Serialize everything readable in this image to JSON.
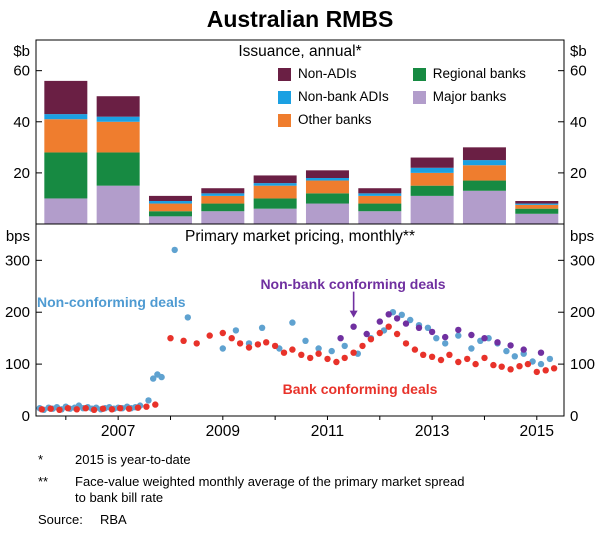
{
  "title": "Australian RMBS",
  "panels": {
    "top": {
      "title": "Issuance, annual*",
      "unit": "$b"
    },
    "bottom": {
      "title": "Primary market pricing, monthly**",
      "unit": "bps"
    }
  },
  "legend": {
    "items": [
      {
        "label": "Non-ADIs",
        "color": "#6a1f44"
      },
      {
        "label": "Non-bank ADIs",
        "color": "#1ba0e2"
      },
      {
        "label": "Other banks",
        "color": "#ef7d2e"
      },
      {
        "label": "Regional banks",
        "color": "#178a42"
      },
      {
        "label": "Major banks",
        "color": "#b29dcb"
      }
    ]
  },
  "annotations": {
    "non_conforming": {
      "text": "Non-conforming deals",
      "color": "#4f9bd2"
    },
    "non_bank_conforming": {
      "text": "Non-bank conforming deals",
      "color": "#7030a0",
      "arrow_to": [
        2011.5,
        178
      ]
    },
    "bank_conforming": {
      "text": "Bank conforming deals",
      "color": "#e8322a"
    }
  },
  "footnotes": [
    {
      "marker": "*",
      "lines": [
        "2015 is year-to-date"
      ]
    },
    {
      "marker": "**",
      "lines": [
        "Face-value weighted monthly average of the primary market spread",
        "to bank bill rate"
      ]
    }
  ],
  "source": {
    "label": "Source:",
    "value": "RBA"
  },
  "chart_data": [
    {
      "type": "bar",
      "stacked": true,
      "title": "Issuance, annual*",
      "ylabel": "$b",
      "ylim": [
        0,
        72
      ],
      "yticks": [
        20,
        40,
        60
      ],
      "categories": [
        2006,
        2007,
        2008,
        2009,
        2010,
        2011,
        2012,
        2013,
        2014,
        2015
      ],
      "series": [
        {
          "name": "Major banks",
          "color": "#b29dcb",
          "values": [
            10,
            15,
            3,
            5,
            6,
            8,
            5,
            11,
            13,
            4
          ]
        },
        {
          "name": "Regional banks",
          "color": "#178a42",
          "values": [
            18,
            13,
            2,
            3,
            4,
            4,
            3,
            4,
            4,
            2
          ]
        },
        {
          "name": "Other banks",
          "color": "#ef7d2e",
          "values": [
            13,
            12,
            3,
            3,
            5,
            5,
            3,
            5,
            6,
            1.5
          ]
        },
        {
          "name": "Non-bank ADIs",
          "color": "#1ba0e2",
          "values": [
            2,
            2,
            1,
            1,
            1,
            1,
            1,
            2,
            2,
            0.5
          ]
        },
        {
          "name": "Non-ADIs",
          "color": "#6a1f44",
          "values": [
            13,
            8,
            2,
            2,
            3,
            3,
            2,
            4,
            5,
            1
          ]
        }
      ]
    },
    {
      "type": "scatter",
      "title": "Primary market pricing, monthly**",
      "ylabel": "bps",
      "ylim": [
        0,
        370
      ],
      "yticks": [
        0,
        100,
        200,
        300
      ],
      "xlim": [
        2005.43,
        2015.52
      ],
      "xticks": [
        2007,
        2009,
        2011,
        2013,
        2015
      ],
      "series": [
        {
          "name": "Non-conforming deals",
          "color": "#5fa2d0",
          "points": [
            [
              2005.5,
              15
            ],
            [
              2005.58,
              12
            ],
            [
              2005.67,
              16
            ],
            [
              2005.75,
              14
            ],
            [
              2005.83,
              17
            ],
            [
              2005.92,
              13
            ],
            [
              2006.0,
              18
            ],
            [
              2006.08,
              14
            ],
            [
              2006.17,
              16
            ],
            [
              2006.25,
              20
            ],
            [
              2006.33,
              15
            ],
            [
              2006.42,
              17
            ],
            [
              2006.5,
              14
            ],
            [
              2006.58,
              16
            ],
            [
              2006.67,
              13
            ],
            [
              2006.75,
              15
            ],
            [
              2006.83,
              17
            ],
            [
              2006.92,
              14
            ],
            [
              2007.0,
              16
            ],
            [
              2007.08,
              15
            ],
            [
              2007.17,
              18
            ],
            [
              2007.25,
              15
            ],
            [
              2007.33,
              17
            ],
            [
              2007.42,
              20
            ],
            [
              2007.58,
              30
            ],
            [
              2007.67,
              72
            ],
            [
              2007.75,
              80
            ],
            [
              2007.83,
              75
            ],
            [
              2008.08,
              320
            ],
            [
              2008.33,
              190
            ],
            [
              2009.0,
              130
            ],
            [
              2009.25,
              165
            ],
            [
              2009.5,
              140
            ],
            [
              2009.75,
              170
            ],
            [
              2010.08,
              130
            ],
            [
              2010.33,
              180
            ],
            [
              2010.58,
              145
            ],
            [
              2010.83,
              130
            ],
            [
              2011.08,
              125
            ],
            [
              2011.33,
              135
            ],
            [
              2011.58,
              120
            ],
            [
              2011.83,
              150
            ],
            [
              2012.08,
              165
            ],
            [
              2012.25,
              200
            ],
            [
              2012.42,
              195
            ],
            [
              2012.58,
              185
            ],
            [
              2012.75,
              175
            ],
            [
              2012.92,
              170
            ],
            [
              2013.08,
              150
            ],
            [
              2013.25,
              140
            ],
            [
              2013.5,
              155
            ],
            [
              2013.75,
              130
            ],
            [
              2013.92,
              145
            ],
            [
              2014.08,
              150
            ],
            [
              2014.25,
              140
            ],
            [
              2014.42,
              125
            ],
            [
              2014.58,
              115
            ],
            [
              2014.75,
              120
            ],
            [
              2014.92,
              105
            ],
            [
              2015.08,
              100
            ],
            [
              2015.25,
              110
            ]
          ]
        },
        {
          "name": "Bank conforming deals",
          "color": "#e8322a",
          "points": [
            [
              2005.54,
              13
            ],
            [
              2005.71,
              14
            ],
            [
              2005.88,
              12
            ],
            [
              2006.04,
              15
            ],
            [
              2006.21,
              13
            ],
            [
              2006.38,
              15
            ],
            [
              2006.54,
              12
            ],
            [
              2006.71,
              14
            ],
            [
              2006.88,
              13
            ],
            [
              2007.04,
              15
            ],
            [
              2007.21,
              14
            ],
            [
              2007.38,
              16
            ],
            [
              2007.54,
              18
            ],
            [
              2007.71,
              22
            ],
            [
              2008.0,
              150
            ],
            [
              2008.25,
              145
            ],
            [
              2008.5,
              140
            ],
            [
              2008.75,
              155
            ],
            [
              2009.0,
              160
            ],
            [
              2009.17,
              150
            ],
            [
              2009.33,
              140
            ],
            [
              2009.5,
              132
            ],
            [
              2009.67,
              138
            ],
            [
              2009.83,
              142
            ],
            [
              2010.0,
              135
            ],
            [
              2010.17,
              122
            ],
            [
              2010.33,
              128
            ],
            [
              2010.5,
              118
            ],
            [
              2010.67,
              112
            ],
            [
              2010.83,
              120
            ],
            [
              2011.0,
              110
            ],
            [
              2011.17,
              104
            ],
            [
              2011.33,
              112
            ],
            [
              2011.5,
              122
            ],
            [
              2011.67,
              135
            ],
            [
              2011.83,
              148
            ],
            [
              2012.0,
              160
            ],
            [
              2012.17,
              172
            ],
            [
              2012.33,
              158
            ],
            [
              2012.5,
              140
            ],
            [
              2012.67,
              128
            ],
            [
              2012.83,
              118
            ],
            [
              2013.0,
              114
            ],
            [
              2013.17,
              108
            ],
            [
              2013.33,
              118
            ],
            [
              2013.5,
              104
            ],
            [
              2013.67,
              110
            ],
            [
              2013.83,
              100
            ],
            [
              2014.0,
              112
            ],
            [
              2014.17,
              98
            ],
            [
              2014.33,
              95
            ],
            [
              2014.5,
              90
            ],
            [
              2014.67,
              96
            ],
            [
              2014.83,
              100
            ],
            [
              2015.0,
              85
            ],
            [
              2015.17,
              88
            ],
            [
              2015.33,
              92
            ]
          ]
        },
        {
          "name": "Non-bank conforming deals",
          "color": "#7030a0",
          "points": [
            [
              2011.25,
              150
            ],
            [
              2011.5,
              172
            ],
            [
              2011.75,
              158
            ],
            [
              2012.0,
              182
            ],
            [
              2012.17,
              196
            ],
            [
              2012.33,
              188
            ],
            [
              2012.5,
              178
            ],
            [
              2012.75,
              170
            ],
            [
              2013.0,
              162
            ],
            [
              2013.25,
              152
            ],
            [
              2013.5,
              166
            ],
            [
              2013.75,
              156
            ],
            [
              2014.0,
              150
            ],
            [
              2014.25,
              142
            ],
            [
              2014.5,
              136
            ],
            [
              2014.75,
              128
            ],
            [
              2015.08,
              122
            ]
          ]
        }
      ]
    }
  ]
}
